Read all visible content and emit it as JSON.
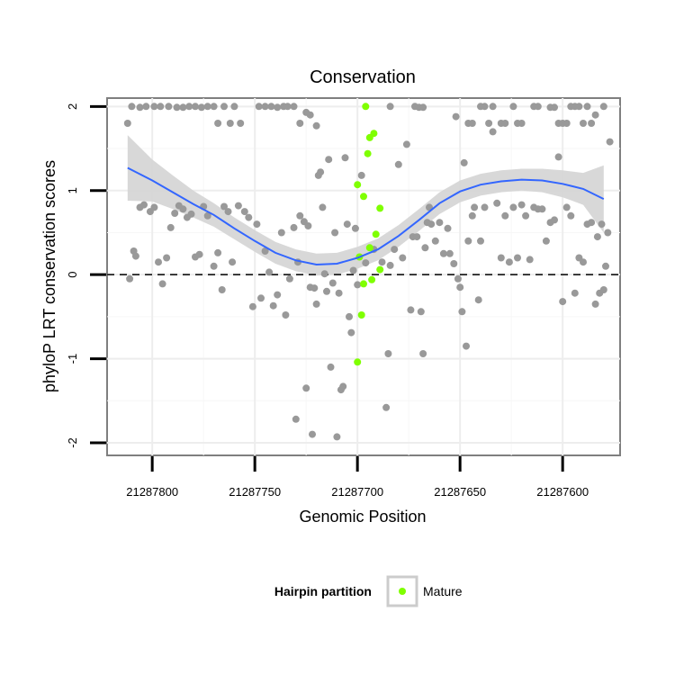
{
  "chart_data": {
    "type": "scatter",
    "title": "Conservation",
    "xlabel": "Genomic Position",
    "ylabel": "phyloP LRT conservation scores",
    "x_reversed": true,
    "xlim": [
      21287822,
      21287572
    ],
    "ylim": [
      -2.15,
      2.1
    ],
    "x_ticks": [
      21287800,
      21287750,
      21287700,
      21287650,
      21287600
    ],
    "x_tick_labels": [
      "21287800",
      "21287750",
      "21287700",
      "21287650",
      "21287600"
    ],
    "y_ticks": [
      -2,
      -1,
      0,
      1,
      2
    ],
    "y_tick_labels": [
      "-2",
      "-1",
      "0",
      "1",
      "2"
    ],
    "grid": true,
    "reference_line": {
      "y": 0,
      "style": "dashed"
    },
    "legend": {
      "title": "Hairpin partition",
      "entries": [
        "Mature"
      ],
      "position": "bottom"
    },
    "colors": {
      "background_points": "#999999",
      "mature_points": "#7fff00",
      "smooth_line": "#3366ff",
      "ribbon": "#d4d4d4"
    },
    "smooth_curve": [
      {
        "x": 21287812,
        "y": 1.27
      },
      {
        "x": 21287800,
        "y": 1.12
      },
      {
        "x": 21287790,
        "y": 0.98
      },
      {
        "x": 21287780,
        "y": 0.84
      },
      {
        "x": 21287770,
        "y": 0.71
      },
      {
        "x": 21287760,
        "y": 0.55
      },
      {
        "x": 21287750,
        "y": 0.4
      },
      {
        "x": 21287740,
        "y": 0.26
      },
      {
        "x": 21287730,
        "y": 0.17
      },
      {
        "x": 21287720,
        "y": 0.12
      },
      {
        "x": 21287710,
        "y": 0.13
      },
      {
        "x": 21287700,
        "y": 0.2
      },
      {
        "x": 21287690,
        "y": 0.3
      },
      {
        "x": 21287680,
        "y": 0.46
      },
      {
        "x": 21287670,
        "y": 0.65
      },
      {
        "x": 21287660,
        "y": 0.85
      },
      {
        "x": 21287650,
        "y": 0.99
      },
      {
        "x": 21287640,
        "y": 1.07
      },
      {
        "x": 21287630,
        "y": 1.11
      },
      {
        "x": 21287620,
        "y": 1.13
      },
      {
        "x": 21287610,
        "y": 1.12
      },
      {
        "x": 21287600,
        "y": 1.08
      },
      {
        "x": 21287590,
        "y": 1.02
      },
      {
        "x": 21287580,
        "y": 0.9
      }
    ],
    "ribbon_halfwidth": [
      0.39,
      0.25,
      0.2,
      0.16,
      0.14,
      0.13,
      0.13,
      0.13,
      0.13,
      0.13,
      0.13,
      0.13,
      0.13,
      0.13,
      0.13,
      0.13,
      0.13,
      0.13,
      0.13,
      0.13,
      0.14,
      0.16,
      0.19,
      0.4
    ],
    "series": [
      {
        "name": "Mature",
        "points": [
          {
            "x": 21287696,
            "y": 2.0
          },
          {
            "x": 21287692,
            "y": 1.68
          },
          {
            "x": 21287694,
            "y": 1.63
          },
          {
            "x": 21287695,
            "y": 1.44
          },
          {
            "x": 21287700,
            "y": 1.07
          },
          {
            "x": 21287697,
            "y": 0.93
          },
          {
            "x": 21287689,
            "y": 0.79
          },
          {
            "x": 21287691,
            "y": 0.48
          },
          {
            "x": 21287694,
            "y": 0.32
          },
          {
            "x": 21287699,
            "y": 0.21
          },
          {
            "x": 21287689,
            "y": 0.06
          },
          {
            "x": 21287693,
            "y": -0.06
          },
          {
            "x": 21287697,
            "y": -0.11
          },
          {
            "x": 21287698,
            "y": -0.48
          },
          {
            "x": 21287700,
            "y": -1.04
          }
        ]
      },
      {
        "points": [
          {
            "x": 21287812,
            "y": 1.8
          },
          {
            "x": 21287810,
            "y": 2.0
          },
          {
            "x": 21287806,
            "y": 1.99
          },
          {
            "x": 21287803,
            "y": 2.0
          },
          {
            "x": 21287799,
            "y": 2.0
          },
          {
            "x": 21287796,
            "y": 2.0
          },
          {
            "x": 21287792,
            "y": 2.0
          },
          {
            "x": 21287788,
            "y": 1.99
          },
          {
            "x": 21287785,
            "y": 1.99
          },
          {
            "x": 21287782,
            "y": 2.0
          },
          {
            "x": 21287779,
            "y": 2.0
          },
          {
            "x": 21287776,
            "y": 1.99
          },
          {
            "x": 21287773,
            "y": 2.0
          },
          {
            "x": 21287770,
            "y": 2.0
          },
          {
            "x": 21287768,
            "y": 1.8
          },
          {
            "x": 21287765,
            "y": 2.0
          },
          {
            "x": 21287762,
            "y": 1.8
          },
          {
            "x": 21287760,
            "y": 2.0
          },
          {
            "x": 21287757,
            "y": 1.8
          },
          {
            "x": 21287748,
            "y": 2.0
          },
          {
            "x": 21287745,
            "y": 2.0
          },
          {
            "x": 21287742,
            "y": 2.0
          },
          {
            "x": 21287739,
            "y": 1.99
          },
          {
            "x": 21287736,
            "y": 2.0
          },
          {
            "x": 21287734,
            "y": 2.0
          },
          {
            "x": 21287731,
            "y": 2.0
          },
          {
            "x": 21287728,
            "y": 1.8
          },
          {
            "x": 21287725,
            "y": 1.93
          },
          {
            "x": 21287723,
            "y": 1.9
          },
          {
            "x": 21287720,
            "y": 1.77
          },
          {
            "x": 21287809,
            "y": 0.28
          },
          {
            "x": 21287808,
            "y": 0.22
          },
          {
            "x": 21287811,
            "y": -0.05
          },
          {
            "x": 21287806,
            "y": 0.8
          },
          {
            "x": 21287804,
            "y": 0.83
          },
          {
            "x": 21287801,
            "y": 0.75
          },
          {
            "x": 21287799,
            "y": 0.8
          },
          {
            "x": 21287797,
            "y": 0.15
          },
          {
            "x": 21287795,
            "y": -0.11
          },
          {
            "x": 21287793,
            "y": 0.2
          },
          {
            "x": 21287791,
            "y": 0.56
          },
          {
            "x": 21287789,
            "y": 0.73
          },
          {
            "x": 21287787,
            "y": 0.82
          },
          {
            "x": 21287785,
            "y": 0.78
          },
          {
            "x": 21287783,
            "y": 0.68
          },
          {
            "x": 21287781,
            "y": 0.72
          },
          {
            "x": 21287779,
            "y": 0.21
          },
          {
            "x": 21287777,
            "y": 0.24
          },
          {
            "x": 21287775,
            "y": 0.81
          },
          {
            "x": 21287773,
            "y": 0.7
          },
          {
            "x": 21287770,
            "y": 0.1
          },
          {
            "x": 21287768,
            "y": 0.26
          },
          {
            "x": 21287766,
            "y": -0.18
          },
          {
            "x": 21287765,
            "y": 0.81
          },
          {
            "x": 21287763,
            "y": 0.75
          },
          {
            "x": 21287761,
            "y": 0.15
          },
          {
            "x": 21287758,
            "y": 0.82
          },
          {
            "x": 21287755,
            "y": 0.75
          },
          {
            "x": 21287753,
            "y": 0.68
          },
          {
            "x": 21287751,
            "y": -0.38
          },
          {
            "x": 21287749,
            "y": 0.6
          },
          {
            "x": 21287747,
            "y": -0.28
          },
          {
            "x": 21287745,
            "y": 0.28
          },
          {
            "x": 21287743,
            "y": 0.03
          },
          {
            "x": 21287741,
            "y": -0.37
          },
          {
            "x": 21287739,
            "y": -0.24
          },
          {
            "x": 21287737,
            "y": 0.5
          },
          {
            "x": 21287735,
            "y": -0.48
          },
          {
            "x": 21287733,
            "y": -0.05
          },
          {
            "x": 21287731,
            "y": 0.56
          },
          {
            "x": 21287730,
            "y": -1.72
          },
          {
            "x": 21287729,
            "y": 0.15
          },
          {
            "x": 21287728,
            "y": 0.7
          },
          {
            "x": 21287726,
            "y": 0.63
          },
          {
            "x": 21287725,
            "y": -1.35
          },
          {
            "x": 21287724,
            "y": 0.58
          },
          {
            "x": 21287723,
            "y": -0.15
          },
          {
            "x": 21287722,
            "y": -1.9
          },
          {
            "x": 21287721,
            "y": -0.16
          },
          {
            "x": 21287720,
            "y": -0.35
          },
          {
            "x": 21287719,
            "y": 1.18
          },
          {
            "x": 21287718,
            "y": 1.22
          },
          {
            "x": 21287717,
            "y": 0.8
          },
          {
            "x": 21287716,
            "y": 0.01
          },
          {
            "x": 21287715,
            "y": -0.2
          },
          {
            "x": 21287714,
            "y": 1.37
          },
          {
            "x": 21287713,
            "y": -1.1
          },
          {
            "x": 21287712,
            "y": -0.1
          },
          {
            "x": 21287711,
            "y": 0.5
          },
          {
            "x": 21287710,
            "y": -1.93
          },
          {
            "x": 21287709,
            "y": -0.22
          },
          {
            "x": 21287708,
            "y": -1.37
          },
          {
            "x": 21287707,
            "y": -1.33
          },
          {
            "x": 21287706,
            "y": 1.39
          },
          {
            "x": 21287705,
            "y": 0.6
          },
          {
            "x": 21287704,
            "y": -0.5
          },
          {
            "x": 21287703,
            "y": -0.69
          },
          {
            "x": 21287702,
            "y": 0.05
          },
          {
            "x": 21287701,
            "y": 0.55
          },
          {
            "x": 21287700,
            "y": -0.12
          },
          {
            "x": 21287698,
            "y": 1.18
          },
          {
            "x": 21287696,
            "y": 0.14
          },
          {
            "x": 21287692,
            "y": 0.3
          },
          {
            "x": 21287688,
            "y": 0.15
          },
          {
            "x": 21287686,
            "y": -1.58
          },
          {
            "x": 21287685,
            "y": -0.94
          },
          {
            "x": 21287684,
            "y": 0.11
          },
          {
            "x": 21287682,
            "y": 0.3
          },
          {
            "x": 21287680,
            "y": 1.31
          },
          {
            "x": 21287678,
            "y": 0.2
          },
          {
            "x": 21287676,
            "y": 1.55
          },
          {
            "x": 21287674,
            "y": -0.42
          },
          {
            "x": 21287673,
            "y": 0.45
          },
          {
            "x": 21287671,
            "y": 0.45
          },
          {
            "x": 21287669,
            "y": -0.44
          },
          {
            "x": 21287668,
            "y": -0.94
          },
          {
            "x": 21287667,
            "y": 0.32
          },
          {
            "x": 21287666,
            "y": 0.62
          },
          {
            "x": 21287665,
            "y": 0.8
          },
          {
            "x": 21287664,
            "y": 0.6
          },
          {
            "x": 21287662,
            "y": 0.4
          },
          {
            "x": 21287660,
            "y": 0.62
          },
          {
            "x": 21287658,
            "y": 0.25
          },
          {
            "x": 21287656,
            "y": 0.55
          },
          {
            "x": 21287655,
            "y": 0.25
          },
          {
            "x": 21287653,
            "y": 0.13
          },
          {
            "x": 21287651,
            "y": -0.05
          },
          {
            "x": 21287650,
            "y": -0.15
          },
          {
            "x": 21287649,
            "y": -0.44
          },
          {
            "x": 21287648,
            "y": 1.33
          },
          {
            "x": 21287647,
            "y": -0.85
          },
          {
            "x": 21287646,
            "y": 0.4
          },
          {
            "x": 21287644,
            "y": 0.7
          },
          {
            "x": 21287643,
            "y": 0.8
          },
          {
            "x": 21287641,
            "y": -0.3
          },
          {
            "x": 21287640,
            "y": 0.4
          },
          {
            "x": 21287638,
            "y": 0.8
          },
          {
            "x": 21287636,
            "y": 1.8
          },
          {
            "x": 21287634,
            "y": 1.7
          },
          {
            "x": 21287632,
            "y": 0.85
          },
          {
            "x": 21287630,
            "y": 0.2
          },
          {
            "x": 21287628,
            "y": 0.7
          },
          {
            "x": 21287626,
            "y": 0.15
          },
          {
            "x": 21287624,
            "y": 0.8
          },
          {
            "x": 21287622,
            "y": 0.2
          },
          {
            "x": 21287620,
            "y": 0.83
          },
          {
            "x": 21287618,
            "y": 0.7
          },
          {
            "x": 21287616,
            "y": 0.18
          },
          {
            "x": 21287614,
            "y": 0.8
          },
          {
            "x": 21287612,
            "y": 0.78
          },
          {
            "x": 21287610,
            "y": 0.78
          },
          {
            "x": 21287608,
            "y": 0.4
          },
          {
            "x": 21287606,
            "y": 0.62
          },
          {
            "x": 21287604,
            "y": 0.65
          },
          {
            "x": 21287602,
            "y": 1.4
          },
          {
            "x": 21287600,
            "y": -0.32
          },
          {
            "x": 21287598,
            "y": 0.8
          },
          {
            "x": 21287596,
            "y": 0.7
          },
          {
            "x": 21287594,
            "y": -0.22
          },
          {
            "x": 21287592,
            "y": 0.2
          },
          {
            "x": 21287590,
            "y": 0.15
          },
          {
            "x": 21287588,
            "y": 0.6
          },
          {
            "x": 21287586,
            "y": 0.62
          },
          {
            "x": 21287584,
            "y": -0.35
          },
          {
            "x": 21287583,
            "y": 0.45
          },
          {
            "x": 21287582,
            "y": -0.22
          },
          {
            "x": 21287581,
            "y": 0.6
          },
          {
            "x": 21287580,
            "y": -0.18
          },
          {
            "x": 21287579,
            "y": 0.1
          },
          {
            "x": 21287578,
            "y": 0.5
          },
          {
            "x": 21287577,
            "y": 1.58
          },
          {
            "x": 21287684,
            "y": 2.0
          },
          {
            "x": 21287672,
            "y": 2.0
          },
          {
            "x": 21287670,
            "y": 1.99
          },
          {
            "x": 21287668,
            "y": 1.99
          },
          {
            "x": 21287652,
            "y": 1.88
          },
          {
            "x": 21287646,
            "y": 1.8
          },
          {
            "x": 21287644,
            "y": 1.8
          },
          {
            "x": 21287640,
            "y": 2.0
          },
          {
            "x": 21287638,
            "y": 2.0
          },
          {
            "x": 21287634,
            "y": 2.0
          },
          {
            "x": 21287630,
            "y": 1.8
          },
          {
            "x": 21287628,
            "y": 1.8
          },
          {
            "x": 21287624,
            "y": 2.0
          },
          {
            "x": 21287622,
            "y": 1.8
          },
          {
            "x": 21287620,
            "y": 1.8
          },
          {
            "x": 21287614,
            "y": 2.0
          },
          {
            "x": 21287612,
            "y": 2.0
          },
          {
            "x": 21287606,
            "y": 1.99
          },
          {
            "x": 21287604,
            "y": 1.99
          },
          {
            "x": 21287602,
            "y": 1.8
          },
          {
            "x": 21287600,
            "y": 1.8
          },
          {
            "x": 21287598,
            "y": 1.8
          },
          {
            "x": 21287596,
            "y": 2.0
          },
          {
            "x": 21287594,
            "y": 2.0
          },
          {
            "x": 21287592,
            "y": 2.0
          },
          {
            "x": 21287590,
            "y": 1.8
          },
          {
            "x": 21287588,
            "y": 2.0
          },
          {
            "x": 21287586,
            "y": 1.8
          },
          {
            "x": 21287584,
            "y": 1.9
          },
          {
            "x": 21287580,
            "y": 2.0
          }
        ]
      }
    ]
  }
}
